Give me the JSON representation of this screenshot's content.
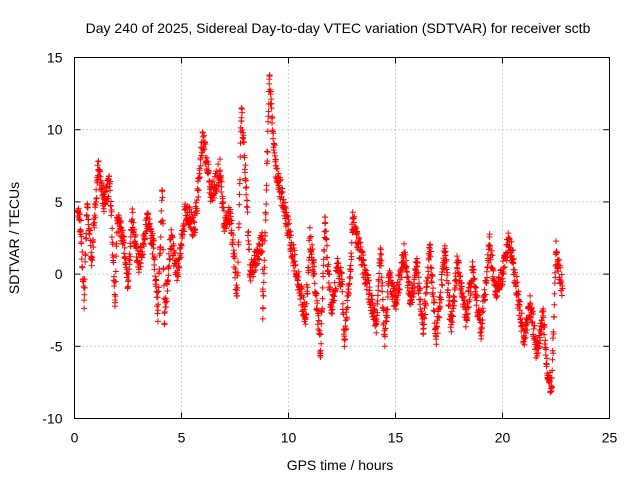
{
  "chart_data": {
    "type": "scatter",
    "title": "Day 240 of 2025, Sidereal Day-to-day VTEC variation (SDTVAR) for receiver sctb",
    "xlabel": "GPS time / hours",
    "ylabel": "SDTVAR / TECUs",
    "xlim": [
      0,
      25
    ],
    "ylim": [
      -10,
      15
    ],
    "x_ticks": [
      0,
      5,
      10,
      15,
      20,
      25
    ],
    "y_ticks": [
      -10,
      -5,
      0,
      5,
      10,
      15
    ],
    "x_tick_labels": [
      "0",
      "5",
      "10",
      "15",
      "20",
      "25"
    ],
    "y_tick_labels": [
      "-10",
      "-5",
      "0",
      "5",
      "10",
      "15"
    ],
    "grid": true,
    "marker": "plus",
    "series": [
      {
        "name": "SDTVAR",
        "color": "#ff0000",
        "segments": [
          [
            0.15,
            4.3
          ],
          [
            0.3,
            3.0
          ],
          [
            0.45,
            -1.8
          ],
          [
            0.6,
            4.8
          ],
          [
            0.8,
            1.0
          ],
          [
            1.1,
            7.2
          ],
          [
            1.4,
            4.9
          ],
          [
            1.65,
            6.4
          ],
          [
            1.9,
            -1.8
          ],
          [
            2.0,
            3.9
          ],
          [
            2.3,
            2.2
          ],
          [
            2.5,
            -0.5
          ],
          [
            2.7,
            3.8
          ],
          [
            3.0,
            0.5
          ],
          [
            3.4,
            3.9
          ],
          [
            3.7,
            1.8
          ],
          [
            3.9,
            -2.5
          ],
          [
            4.1,
            5.8
          ],
          [
            4.2,
            -3.4
          ],
          [
            4.5,
            2.5
          ],
          [
            4.8,
            0.0
          ],
          [
            5.2,
            4.5
          ],
          [
            5.6,
            3.0
          ],
          [
            6.0,
            9.5
          ],
          [
            6.4,
            5.5
          ],
          [
            6.8,
            7.2
          ],
          [
            7.0,
            3.5
          ],
          [
            7.3,
            4.0
          ],
          [
            7.6,
            -1.5
          ],
          [
            7.8,
            11.5
          ],
          [
            8.0,
            6.5
          ],
          [
            8.2,
            0.0
          ],
          [
            8.8,
            2.3
          ],
          [
            8.8,
            -3.1
          ],
          [
            9.1,
            13.5
          ],
          [
            9.4,
            7.5
          ],
          [
            10.6,
            -1.5
          ],
          [
            10.8,
            -3.0
          ],
          [
            11.0,
            2.5
          ],
          [
            11.2,
            0.0
          ],
          [
            11.5,
            -5.3
          ],
          [
            11.7,
            3.5
          ],
          [
            12.0,
            -2.5
          ],
          [
            12.3,
            0.5
          ],
          [
            12.5,
            -0.5
          ],
          [
            12.6,
            -4.5
          ],
          [
            12.9,
            0.2
          ],
          [
            13.0,
            3.9
          ],
          [
            14.1,
            -3.5
          ],
          [
            14.3,
            1.8
          ],
          [
            14.5,
            -5.0
          ],
          [
            14.7,
            0.0
          ],
          [
            15.0,
            -2.0
          ],
          [
            15.4,
            1.5
          ],
          [
            15.7,
            -1.8
          ],
          [
            16.0,
            0.5
          ],
          [
            16.3,
            -3.8
          ],
          [
            16.6,
            2.0
          ],
          [
            16.9,
            -4.5
          ],
          [
            17.3,
            1.5
          ],
          [
            17.6,
            -3.5
          ],
          [
            17.9,
            0.8
          ],
          [
            18.3,
            -3.0
          ],
          [
            18.6,
            0.3
          ],
          [
            19.0,
            -4.0
          ],
          [
            19.4,
            2.0
          ],
          [
            19.7,
            -1.5
          ],
          [
            20.0,
            0.0
          ],
          [
            20.3,
            2.5
          ],
          [
            20.5,
            0.8
          ],
          [
            21.0,
            -4.5
          ],
          [
            21.3,
            -2.0
          ],
          [
            21.6,
            -5.5
          ],
          [
            21.9,
            -3.0
          ],
          [
            22.1,
            -7.0
          ],
          [
            22.3,
            -7.8
          ],
          [
            22.5,
            1.5
          ],
          [
            22.8,
            -1.0
          ]
        ]
      }
    ]
  }
}
